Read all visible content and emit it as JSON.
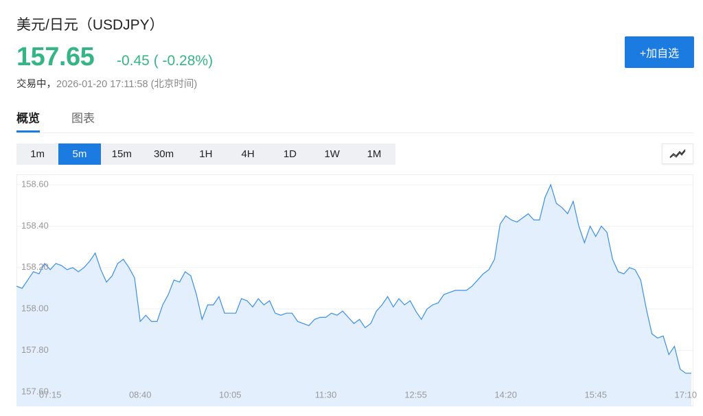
{
  "header": {
    "title": "美元/日元（USDJPY）",
    "price": "157.65",
    "change": "-0.45 ( -0.28%)",
    "status": "交易中，",
    "datetime": "2026-01-20 17:11:58 (北京时间)",
    "button": "+加自选"
  },
  "tabs": {
    "items": [
      "概览",
      "图表"
    ],
    "active": 0
  },
  "periods": {
    "items": [
      "1m",
      "5m",
      "15m",
      "30m",
      "1H",
      "4H",
      "1D",
      "1W",
      "1M"
    ],
    "active": 1
  },
  "chart_data": {
    "type": "area",
    "color": "#3a8ee6",
    "fill": "#e3effc",
    "grid": true,
    "categories": [
      null,
      null,
      null,
      null,
      null,
      null,
      "07:15",
      null,
      null,
      null,
      null,
      null,
      null,
      null,
      null,
      null,
      null,
      null,
      null,
      null,
      null,
      null,
      "08:40",
      null,
      null,
      null,
      null,
      null,
      null,
      null,
      null,
      null,
      null,
      null,
      null,
      null,
      null,
      null,
      "10:05",
      null,
      null,
      null,
      null,
      null,
      null,
      null,
      null,
      null,
      null,
      null,
      null,
      null,
      null,
      null,
      null,
      "11:30",
      null,
      null,
      null,
      null,
      null,
      null,
      null,
      null,
      null,
      null,
      null,
      null,
      null,
      null,
      null,
      "12:55",
      null,
      null,
      null,
      null,
      null,
      null,
      null,
      null,
      null,
      null,
      null,
      null,
      null,
      null,
      null,
      "14:20",
      null,
      null,
      null,
      null,
      null,
      null,
      null,
      null,
      null,
      null,
      null,
      null,
      null,
      null,
      null,
      "15:45",
      null,
      null,
      null,
      null,
      null,
      null,
      null,
      null,
      null,
      null,
      null,
      null,
      null,
      null,
      null,
      "17:10",
      null
    ],
    "values": [
      158.11,
      158.1,
      158.14,
      158.18,
      158.17,
      158.22,
      158.19,
      158.22,
      158.21,
      158.19,
      158.2,
      158.18,
      158.2,
      158.23,
      158.27,
      158.19,
      158.13,
      158.16,
      158.22,
      158.24,
      158.2,
      158.15,
      157.94,
      157.97,
      157.94,
      157.94,
      158.02,
      158.07,
      158.14,
      158.13,
      158.18,
      158.16,
      158.07,
      157.95,
      158.02,
      158.02,
      158.06,
      157.98,
      157.98,
      157.98,
      158.05,
      158.04,
      158.01,
      158.05,
      158.02,
      158.04,
      157.98,
      157.97,
      157.98,
      157.98,
      157.94,
      157.93,
      157.92,
      157.95,
      157.96,
      157.96,
      157.98,
      157.97,
      157.99,
      157.96,
      157.93,
      157.95,
      157.91,
      157.93,
      157.99,
      158.02,
      158.06,
      158.01,
      158.05,
      158.02,
      158.04,
      157.99,
      157.95,
      158.0,
      158.02,
      158.03,
      158.07,
      158.08,
      158.09,
      158.09,
      158.09,
      158.11,
      158.14,
      158.17,
      158.19,
      158.24,
      158.41,
      158.45,
      158.43,
      158.42,
      158.44,
      158.46,
      158.43,
      158.43,
      158.54,
      158.6,
      158.51,
      158.49,
      158.46,
      158.52,
      158.4,
      158.32,
      158.4,
      158.35,
      158.4,
      158.37,
      158.24,
      158.18,
      158.17,
      158.2,
      158.19,
      158.14,
      158.0,
      157.88,
      157.86,
      157.87,
      157.78,
      157.82,
      157.71,
      157.69,
      157.69
    ],
    "ylim": [
      157.53,
      158.65
    ],
    "yticks": [
      {
        "value": 157.6,
        "label": "157.60"
      },
      {
        "value": 157.8,
        "label": "157.80"
      },
      {
        "value": 158.0,
        "label": "158.00"
      },
      {
        "value": 158.2,
        "label": "158.20"
      },
      {
        "value": 158.4,
        "label": "158.40"
      },
      {
        "value": 158.6,
        "label": "158.60"
      }
    ]
  }
}
